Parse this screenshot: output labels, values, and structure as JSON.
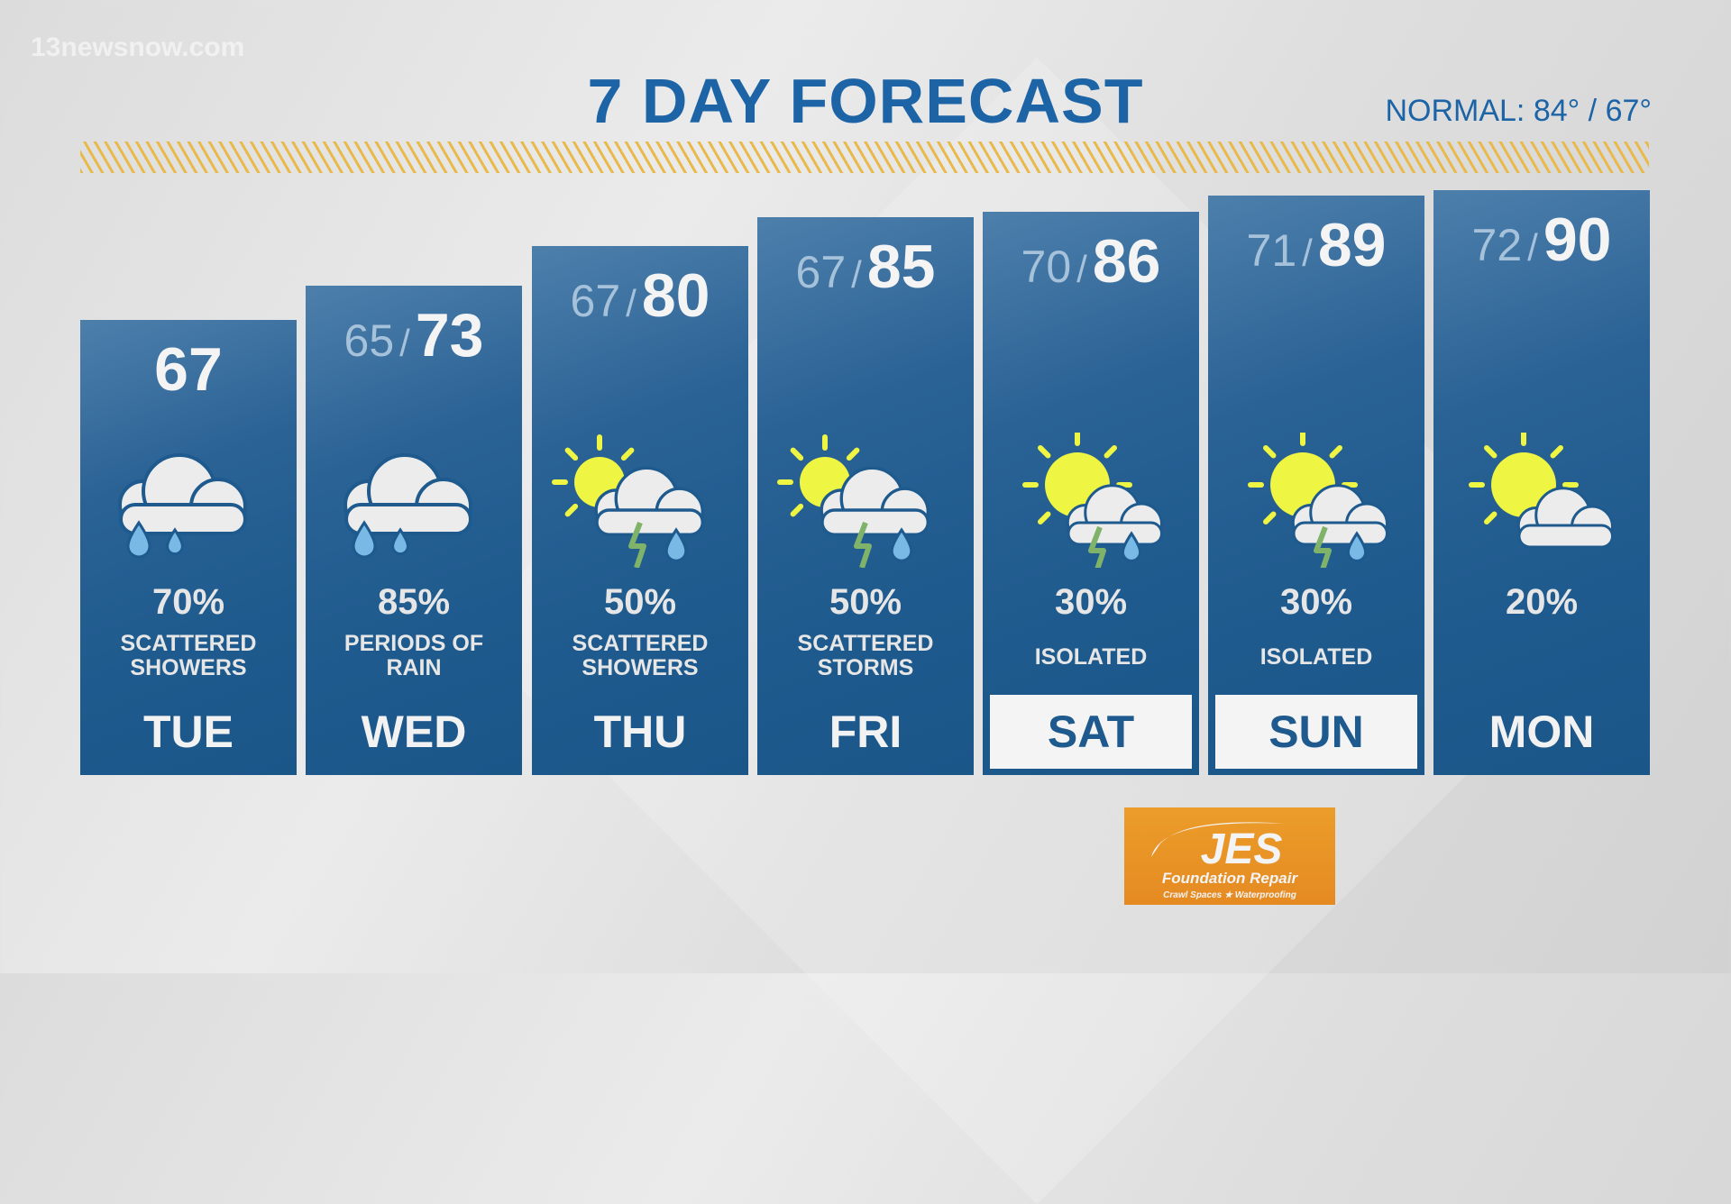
{
  "watermark": "13newsnow.com",
  "title": "7 DAY FORECAST",
  "normal": "NORMAL: 84° / 67°",
  "days": [
    {
      "day": "TUE",
      "low": "",
      "high": "67",
      "precip": "70%",
      "desc": [
        "SCATTERED",
        "SHOWERS"
      ],
      "icon": "rain-cloud-icon",
      "highlight": false
    },
    {
      "day": "WED",
      "low": "65",
      "high": "73",
      "precip": "85%",
      "desc": [
        "PERIODS OF",
        "RAIN"
      ],
      "icon": "rain-cloud-icon",
      "highlight": false
    },
    {
      "day": "THU",
      "low": "67",
      "high": "80",
      "precip": "50%",
      "desc": [
        "SCATTERED",
        "SHOWERS"
      ],
      "icon": "partly-sunny-storm-icon",
      "highlight": false
    },
    {
      "day": "FRI",
      "low": "67",
      "high": "85",
      "precip": "50%",
      "desc": [
        "SCATTERED",
        "STORMS"
      ],
      "icon": "partly-sunny-storm-icon",
      "highlight": false
    },
    {
      "day": "SAT",
      "low": "70",
      "high": "86",
      "precip": "30%",
      "desc": [
        "ISOLATED"
      ],
      "icon": "sunny-storm-icon",
      "highlight": true
    },
    {
      "day": "SUN",
      "low": "71",
      "high": "89",
      "precip": "30%",
      "desc": [
        "ISOLATED"
      ],
      "icon": "sunny-storm-icon",
      "highlight": true
    },
    {
      "day": "MON",
      "low": "72",
      "high": "90",
      "precip": "20%",
      "desc": [],
      "icon": "sun-cloud-icon",
      "highlight": false
    }
  ],
  "sponsor": {
    "name": "JES",
    "line1": "Foundation Repair",
    "line2": "Crawl Spaces ★ Waterproofing"
  },
  "colors": {
    "title": "#1c64a6",
    "column": "#1e5a8d",
    "stripe": "#e9b94a",
    "sun": "#eef542",
    "drop": "#79b9e6",
    "bolt": "#7fb36a",
    "logo": "#e8942a"
  }
}
